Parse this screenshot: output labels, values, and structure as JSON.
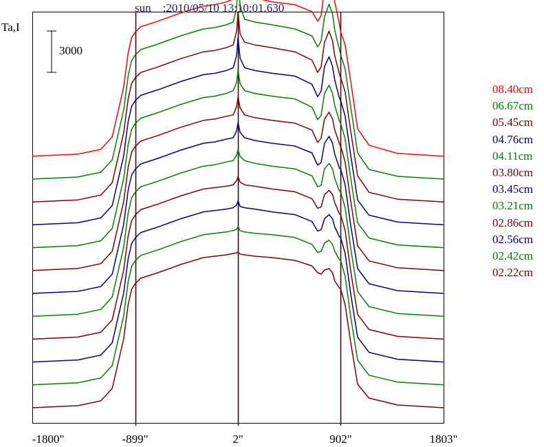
{
  "window_title": "",
  "chart_data": {
    "type": "line",
    "title": "sun    :2010/05/10 13:10:01.630",
    "ylabel": "Ta,I",
    "xlabel": "",
    "scale_bar_label": "3000",
    "scale_bar_value": 3000,
    "x_ticks": [
      "-1800\"",
      "-899\"",
      "2\"",
      "902\"",
      "1803\""
    ],
    "x_tick_values": [
      -1800,
      -899,
      2,
      902,
      1803
    ],
    "vertical_markers": [
      -899,
      2,
      902
    ],
    "xlim": [
      -1800,
      1803
    ],
    "grid": false,
    "legend_position": "right",
    "profile_x": [
      -1800,
      -1400,
      -1200,
      -1100,
      -1000,
      -960,
      -930,
      -899,
      -850,
      -700,
      -500,
      -300,
      -200,
      -100,
      -40,
      -10,
      2,
      20,
      60,
      150,
      300,
      500,
      650,
      700,
      730,
      760,
      800,
      830,
      850,
      890,
      902,
      940,
      990,
      1050,
      1150,
      1400,
      1803
    ],
    "series": [
      {
        "name": "08.40cm",
        "color": "#ff0000",
        "offset": 11,
        "values": [
          0,
          150,
          500,
          1400,
          5000,
          7500,
          8600,
          9000,
          9400,
          9800,
          10400,
          10900,
          11000,
          11200,
          11400,
          13500,
          15800,
          14500,
          11700,
          11500,
          11200,
          11000,
          10500,
          9800,
          10200,
          12200,
          13400,
          12800,
          11200,
          9600,
          9000,
          8100,
          5400,
          2000,
          800,
          200,
          0
        ]
      },
      {
        "name": "06.67cm",
        "color": "#008000",
        "offset": 10,
        "values": [
          0,
          150,
          500,
          1400,
          5000,
          7500,
          8600,
          9000,
          9400,
          9800,
          10400,
          10900,
          11000,
          11200,
          11400,
          12400,
          14500,
          12600,
          11600,
          11400,
          11200,
          10900,
          10400,
          9600,
          10000,
          11800,
          12700,
          12000,
          10800,
          9400,
          9000,
          8000,
          5200,
          1900,
          700,
          200,
          0
        ]
      },
      {
        "name": "05.45cm",
        "color": "#800000",
        "offset": 9,
        "values": [
          0,
          150,
          500,
          1400,
          5000,
          7500,
          8600,
          9000,
          9400,
          9800,
          10400,
          10900,
          11000,
          11200,
          11400,
          12400,
          13800,
          12200,
          11600,
          11400,
          11200,
          10900,
          10300,
          9400,
          9800,
          11600,
          12400,
          11700,
          10600,
          9300,
          9000,
          8000,
          5100,
          1900,
          700,
          200,
          0
        ]
      },
      {
        "name": "04.76cm",
        "color": "#000080",
        "offset": 8,
        "values": [
          0,
          150,
          500,
          1400,
          5000,
          7500,
          8600,
          9000,
          9400,
          9800,
          10400,
          10900,
          11000,
          11200,
          11400,
          12300,
          13600,
          12100,
          11400,
          11200,
          11000,
          10800,
          10200,
          9300,
          9700,
          11500,
          12200,
          11500,
          10500,
          9200,
          9000,
          7900,
          5000,
          1800,
          700,
          200,
          0
        ]
      },
      {
        "name": "04.11cm",
        "color": "#008000",
        "offset": 7,
        "values": [
          0,
          150,
          500,
          1400,
          5000,
          7500,
          8600,
          9000,
          9400,
          9800,
          10400,
          10900,
          11000,
          11200,
          11400,
          12000,
          12900,
          11900,
          11400,
          11200,
          11000,
          10800,
          10200,
          9300,
          9600,
          11200,
          11800,
          11200,
          10300,
          9200,
          9000,
          7900,
          5000,
          1800,
          700,
          200,
          0
        ]
      },
      {
        "name": "03.80cm",
        "color": "#800000",
        "offset": 6,
        "values": [
          0,
          150,
          500,
          1400,
          5000,
          7500,
          8600,
          9000,
          9400,
          9800,
          10400,
          10900,
          11000,
          11200,
          11300,
          11900,
          12600,
          11800,
          11300,
          11100,
          10900,
          10700,
          10200,
          9300,
          9600,
          11000,
          11500,
          11000,
          10200,
          9200,
          9000,
          7900,
          5000,
          1800,
          700,
          200,
          0
        ]
      },
      {
        "name": "03.45cm",
        "color": "#000080",
        "offset": 5,
        "values": [
          0,
          150,
          500,
          1400,
          5000,
          7500,
          8600,
          9000,
          9400,
          9800,
          10400,
          10900,
          11000,
          11200,
          11300,
          11800,
          12400,
          11700,
          11300,
          11100,
          10900,
          10700,
          10200,
          9300,
          9500,
          10900,
          11400,
          10900,
          10100,
          9100,
          9000,
          7900,
          4900,
          1800,
          700,
          200,
          0
        ]
      },
      {
        "name": "03.21cm",
        "color": "#008000",
        "offset": 4,
        "values": [
          0,
          150,
          500,
          1400,
          5000,
          7500,
          8600,
          9000,
          9400,
          9800,
          10400,
          10900,
          11000,
          11200,
          11300,
          11700,
          12100,
          11600,
          11300,
          11100,
          10900,
          10700,
          10200,
          9400,
          9500,
          10700,
          11100,
          10700,
          10000,
          9100,
          9000,
          7900,
          4900,
          1800,
          700,
          200,
          0
        ]
      },
      {
        "name": "02.86cm",
        "color": "#800000",
        "offset": 3,
        "values": [
          0,
          150,
          500,
          1400,
          5000,
          7500,
          8600,
          9000,
          9400,
          9800,
          10400,
          10900,
          11000,
          11100,
          11200,
          11500,
          11800,
          11400,
          11200,
          11100,
          10900,
          10700,
          10200,
          9500,
          9600,
          10500,
          10800,
          10500,
          9900,
          9100,
          9000,
          7900,
          4900,
          1800,
          700,
          200,
          0
        ]
      },
      {
        "name": "02.56cm",
        "color": "#000080",
        "offset": 2,
        "values": [
          0,
          150,
          500,
          1400,
          5000,
          7500,
          8600,
          9000,
          9400,
          9800,
          10400,
          10900,
          11000,
          11100,
          11200,
          11400,
          11700,
          11300,
          11200,
          11100,
          10900,
          10700,
          10200,
          9500,
          9600,
          10400,
          10700,
          10400,
          9800,
          9100,
          9000,
          7900,
          4900,
          1800,
          700,
          200,
          0
        ]
      },
      {
        "name": "02.42cm",
        "color": "#008000",
        "offset": 1,
        "values": [
          0,
          150,
          500,
          1400,
          5000,
          7500,
          8600,
          9000,
          9400,
          9800,
          10400,
          10900,
          11000,
          11100,
          11200,
          11300,
          11500,
          11200,
          11100,
          11000,
          10900,
          10700,
          10200,
          9600,
          9700,
          10300,
          10500,
          10200,
          9700,
          9100,
          9000,
          7900,
          4900,
          1800,
          700,
          200,
          0
        ]
      },
      {
        "name": "02.22cm",
        "color": "#800000",
        "offset": 0,
        "values": [
          0,
          150,
          500,
          1400,
          5000,
          7500,
          8600,
          9000,
          9400,
          9800,
          10400,
          10900,
          11000,
          11100,
          11200,
          11250,
          11300,
          11150,
          11100,
          11000,
          10900,
          10700,
          10300,
          9800,
          9700,
          10000,
          10100,
          9800,
          9200,
          8700,
          8600,
          7500,
          4700,
          1700,
          700,
          200,
          0
        ]
      }
    ]
  }
}
